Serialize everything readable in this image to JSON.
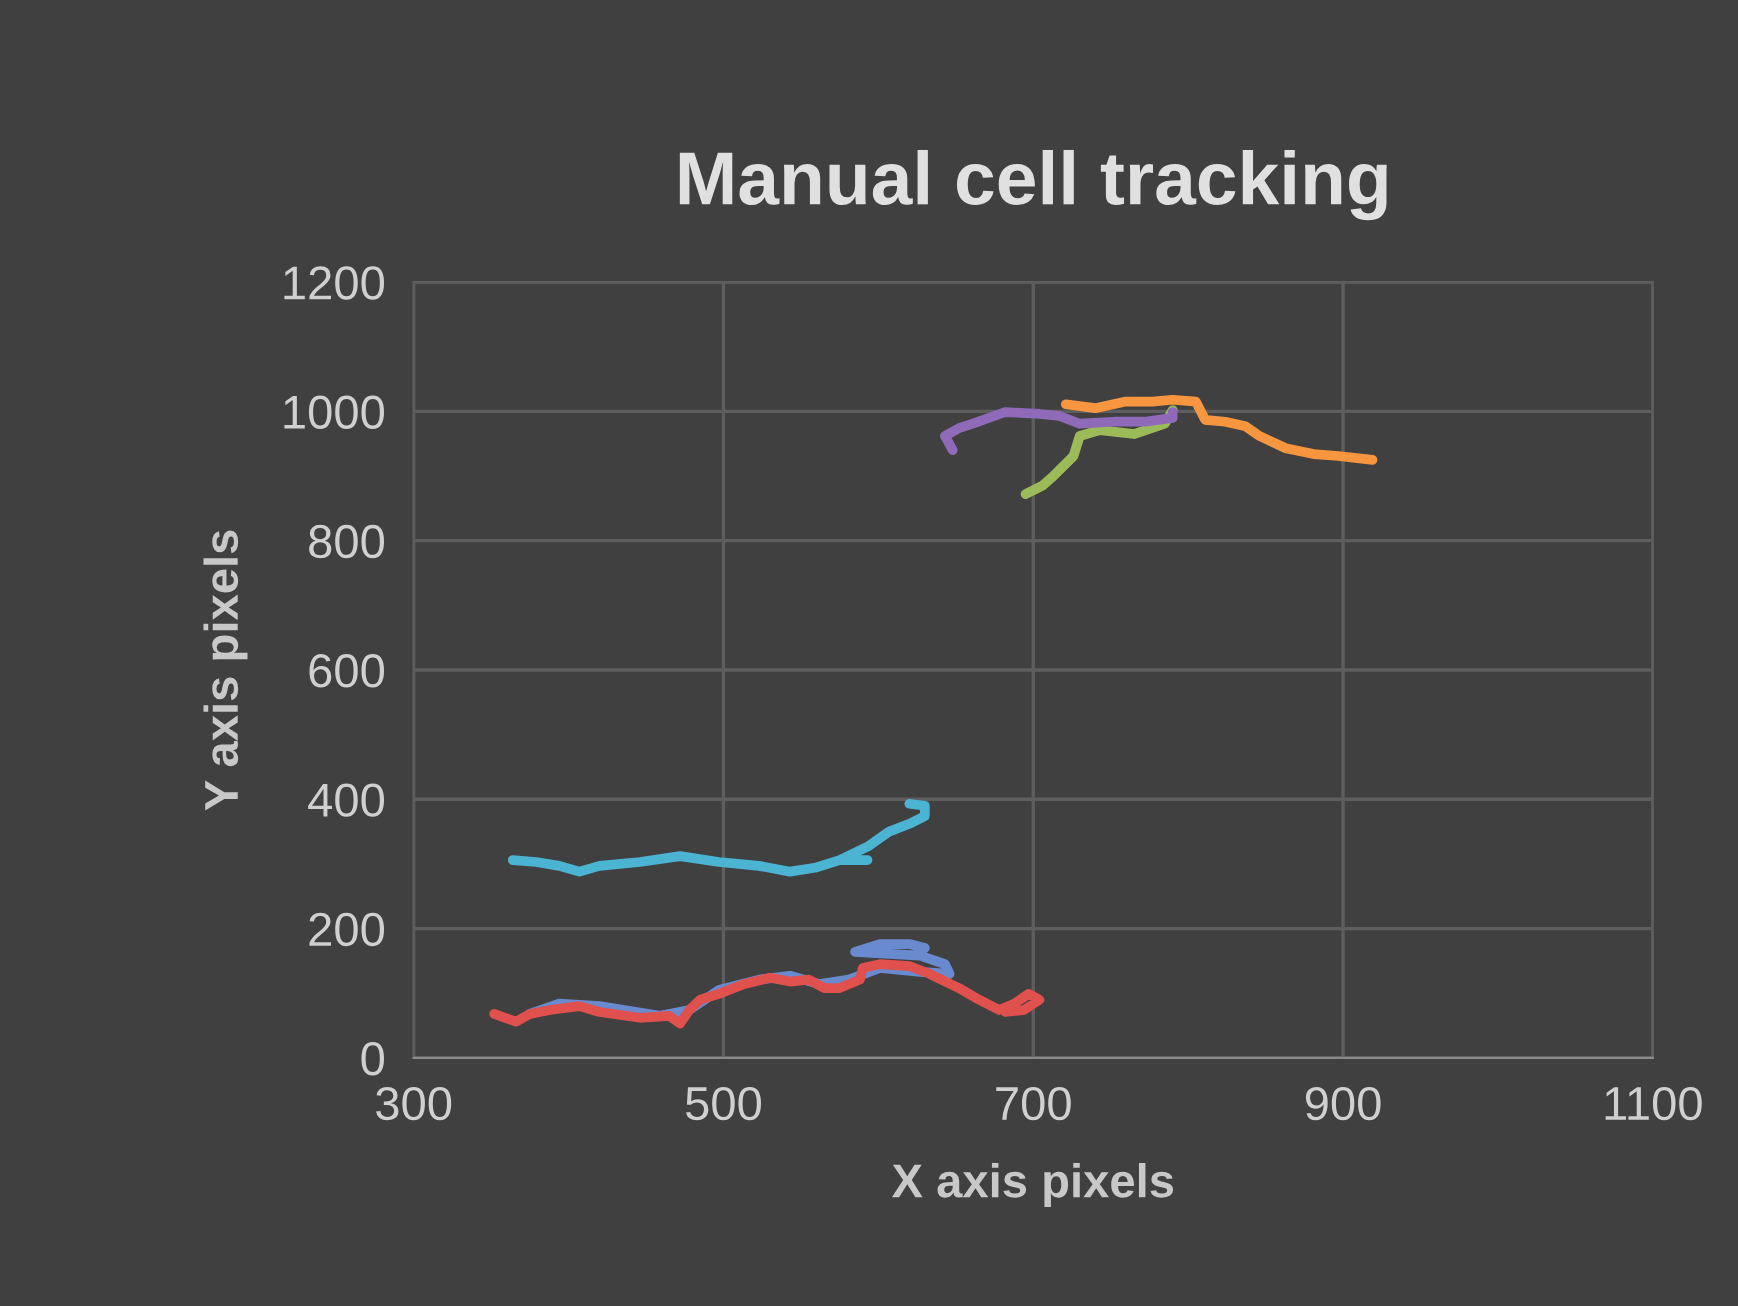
{
  "chart_data": {
    "type": "line",
    "title": "Manual cell tracking",
    "xlabel": "X axis pixels",
    "ylabel": "Y axis pixels",
    "xlim": [
      300,
      1100
    ],
    "xticks": [
      300,
      500,
      700,
      900,
      1100
    ],
    "ylim": [
      0,
      1200
    ],
    "yticks": [
      0,
      200,
      400,
      600,
      800,
      1000,
      1200
    ],
    "grid": true,
    "marker": "none",
    "line_style": "solid",
    "series": [
      {
        "color": "#6a8ad0",
        "x": [
          375,
          394,
          420,
          459,
          478,
          497,
          523,
          543,
          562,
          581,
          601,
          627,
          646,
          643,
          627,
          607,
          585,
          601,
          620,
          630
        ],
        "values": [
          68,
          84,
          80,
          65,
          74,
          105,
          121,
          127,
          114,
          121,
          139,
          133,
          130,
          145,
          158,
          161,
          164,
          176,
          176,
          170
        ]
      },
      {
        "color": "#e0504d",
        "x": [
          352,
          366,
          375,
          388,
          407,
          420,
          446,
          465,
          472,
          478,
          485,
          497,
          513,
          530,
          543,
          555,
          565,
          575,
          588,
          590,
          601,
          620,
          633,
          652,
          665,
          678,
          688,
          697,
          704,
          694,
          682
        ],
        "values": [
          68,
          56,
          68,
          74,
          80,
          71,
          62,
          65,
          53,
          74,
          90,
          99,
          114,
          124,
          118,
          121,
          108,
          108,
          121,
          139,
          145,
          142,
          130,
          108,
          90,
          74,
          84,
          99,
          90,
          74,
          71
        ]
      },
      {
        "color": "#9bbb59",
        "x": [
          695,
          706,
          713,
          721,
          726,
          730,
          743,
          765,
          785,
          790
        ],
        "values": [
          872,
          885,
          900,
          919,
          931,
          962,
          971,
          965,
          981,
          1002
        ]
      },
      {
        "color": "#8f6ab8",
        "x": [
          648,
          643,
          652,
          661,
          682,
          704,
          717,
          730,
          752,
          772,
          790,
          790
        ],
        "values": [
          940,
          962,
          974,
          981,
          999,
          996,
          993,
          981,
          984,
          984,
          990,
          999
        ]
      },
      {
        "color": "#4bb4d2",
        "x": [
          364,
          379,
          394,
          407,
          420,
          446,
          472,
          497,
          523,
          543,
          559,
          575,
          593,
          575,
          594,
          607,
          620,
          630,
          630,
          620
        ],
        "values": [
          306,
          303,
          297,
          288,
          297,
          303,
          312,
          303,
          297,
          288,
          294,
          306,
          306,
          306,
          328,
          350,
          362,
          374,
          390,
          393
        ]
      },
      {
        "color": "#f7963f",
        "x": [
          721,
          740,
          759,
          777,
          790,
          805,
          811,
          824,
          837,
          846,
          863,
          881,
          897,
          919
        ],
        "values": [
          1011,
          1005,
          1015,
          1015,
          1018,
          1015,
          987,
          984,
          977,
          962,
          943,
          934,
          931,
          925
        ]
      }
    ]
  }
}
